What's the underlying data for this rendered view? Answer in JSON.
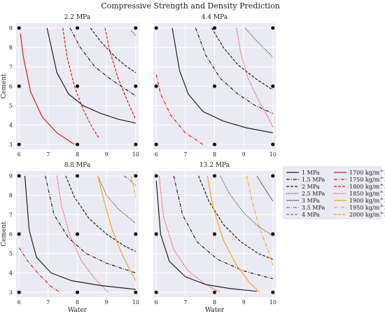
{
  "chart_data": {
    "type": "line",
    "title": "Compressive Strength and Density Prediction",
    "xlabel": "Water",
    "ylabel": "Cement",
    "xlim": [
      5.9,
      10.1
    ],
    "ylim": [
      2.75,
      9.25
    ],
    "xticks": [
      "6",
      "7",
      "8",
      "9",
      "10"
    ],
    "yticks": [
      "3",
      "4",
      "5",
      "6",
      "7",
      "8",
      "9"
    ],
    "grid": true,
    "legend_placement": "right",
    "legend": [
      {
        "label": "1 MPa",
        "color": "#222222",
        "dash": "solid"
      },
      {
        "label": "1.5 MPa",
        "color": "#222222",
        "dash": "dashdot"
      },
      {
        "label": "2 MPa",
        "color": "#222222",
        "dash": "dashed"
      },
      {
        "label": "2.5 MPa",
        "color": "#222222",
        "dash": "dotted"
      },
      {
        "label": "3 MPa",
        "color": "#7a7a7a",
        "dash": "solid"
      },
      {
        "label": "3.5 MPa",
        "color": "#7a7a7a",
        "dash": "dashdot"
      },
      {
        "label": "4 MPa",
        "color": "#7a7a7a",
        "dash": "dashed"
      },
      {
        "label": "1700 kg/m^3",
        "color": "#e41a1c",
        "dash": "solid"
      },
      {
        "label": "1750 kg/m^3",
        "color": "#e41a1c",
        "dash": "dashdot"
      },
      {
        "label": "1800 kg/m^3",
        "color": "#e41a1c",
        "dash": "dashed"
      },
      {
        "label": "1850 kg/m^3",
        "color": "#e41a1c",
        "dash": "dotted"
      },
      {
        "label": "1900 kg/m^3",
        "color": "#f5a623",
        "dash": "solid"
      },
      {
        "label": "1950 kg/m^3",
        "color": "#f5a623",
        "dash": "dashdot"
      },
      {
        "label": "2000 kg/m^3",
        "color": "#f5a623",
        "dash": "dashed"
      }
    ],
    "panels": [
      {
        "title": "2.2 MPa",
        "points": [
          [
            6,
            9
          ],
          [
            8,
            9
          ],
          [
            10,
            9
          ],
          [
            6,
            6
          ],
          [
            8,
            6
          ],
          [
            10,
            6
          ],
          [
            6,
            3
          ],
          [
            8,
            3
          ],
          [
            10,
            3
          ]
        ],
        "series": [
          {
            "legend": 0,
            "x": [
              6.96,
              7.3,
              7.7,
              8.2,
              8.8,
              9.4,
              10.0
            ],
            "y": [
              9,
              6.7,
              5.6,
              5.0,
              4.6,
              4.3,
              4.1
            ]
          },
          {
            "legend": 1,
            "x": [
              7.75,
              8.1,
              8.6,
              9.2,
              9.7,
              10.0
            ],
            "y": [
              9,
              8.0,
              7.0,
              6.3,
              5.8,
              5.5
            ]
          },
          {
            "legend": 2,
            "x": [
              8.45,
              8.8,
              9.3,
              9.7,
              10.0
            ],
            "y": [
              9,
              8.3,
              7.5,
              7.0,
              6.7
            ]
          },
          {
            "legend": 3,
            "x": [
              9.85,
              9.92,
              10.0
            ],
            "y": [
              8.85,
              8.75,
              8.6
            ]
          },
          {
            "legend": 7,
            "x": [
              6.05,
              6.15,
              6.4,
              6.8,
              7.3,
              7.9
            ],
            "y": [
              8.7,
              7.5,
              5.7,
              4.4,
              3.6,
              3.0
            ]
          },
          {
            "legend": 9,
            "x": [
              7.5,
              7.65,
              7.9,
              8.2,
              8.5,
              8.75
            ],
            "y": [
              9,
              7.5,
              6.0,
              4.8,
              3.9,
              3.3
            ]
          },
          {
            "legend": 9,
            "x": [
              8.95,
              9.1,
              9.4,
              9.7,
              10.0
            ],
            "y": [
              9,
              7.9,
              6.4,
              5.3,
              4.3
            ]
          }
        ]
      },
      {
        "title": "4.4 MPa",
        "points": [
          [
            6,
            9
          ],
          [
            8,
            9
          ],
          [
            10,
            9
          ],
          [
            6,
            6
          ],
          [
            8,
            6
          ],
          [
            10,
            6
          ],
          [
            6,
            3
          ],
          [
            8,
            3
          ],
          [
            10,
            3
          ]
        ],
        "series": [
          {
            "legend": 0,
            "x": [
              6.55,
              6.8,
              7.1,
              7.6,
              8.3,
              9.1,
              10.0
            ],
            "y": [
              9,
              6.8,
              5.6,
              4.7,
              4.2,
              3.85,
              3.6
            ]
          },
          {
            "legend": 1,
            "x": [
              7.35,
              7.7,
              8.2,
              8.8,
              9.4,
              10.0
            ],
            "y": [
              9,
              7.6,
              6.4,
              5.6,
              5.0,
              4.6
            ]
          },
          {
            "legend": 2,
            "x": [
              7.9,
              8.3,
              8.8,
              9.4,
              10.0
            ],
            "y": [
              9,
              8.0,
              7.1,
              6.4,
              5.8
            ]
          },
          {
            "legend": 3,
            "x": [
              9.05,
              9.4,
              9.8,
              10.0
            ],
            "y": [
              9,
              8.4,
              7.8,
              7.5
            ]
          },
          {
            "legend": 8,
            "x": [
              6.0,
              6.15,
              6.5,
              7.0,
              7.6
            ],
            "y": [
              6.6,
              5.6,
              4.5,
              3.6,
              3.0
            ]
          },
          {
            "legend": 10,
            "x": [
              8.75,
              8.9,
              9.15,
              9.5,
              9.8,
              10.0
            ],
            "y": [
              9,
              7.7,
              6.4,
              5.3,
              4.5,
              3.9
            ]
          }
        ]
      },
      {
        "title": "8.8 MPa",
        "points": [
          [
            6,
            9
          ],
          [
            8,
            9
          ],
          [
            10,
            9
          ],
          [
            6,
            6
          ],
          [
            8,
            6
          ],
          [
            10,
            6
          ],
          [
            6,
            3
          ],
          [
            8,
            3
          ],
          [
            10,
            3
          ]
        ],
        "series": [
          {
            "legend": 0,
            "x": [
              6.2,
              6.35,
              6.6,
              7.1,
              7.8,
              8.8,
              10.0
            ],
            "y": [
              9,
              6.2,
              4.8,
              4.0,
              3.6,
              3.35,
              3.15
            ]
          },
          {
            "legend": 1,
            "x": [
              6.9,
              7.2,
              7.7,
              8.3,
              9.0,
              10.0
            ],
            "y": [
              9,
              7.0,
              5.8,
              5.0,
              4.5,
              4.0
            ]
          },
          {
            "legend": 2,
            "x": [
              7.6,
              7.9,
              8.4,
              9.0,
              9.6,
              10.0
            ],
            "y": [
              9,
              7.9,
              6.8,
              6.0,
              5.4,
              5.1
            ]
          },
          {
            "legend": 3,
            "x": [
              8.7,
              9.0,
              9.4,
              9.8,
              10.0
            ],
            "y": [
              9,
              8.0,
              7.3,
              6.8,
              6.55
            ]
          },
          {
            "legend": 5,
            "x": [
              9.6,
              9.8,
              10.0
            ],
            "y": [
              9,
              8.8,
              8.5
            ]
          },
          {
            "legend": 8,
            "x": [
              6.0,
              6.3,
              6.7,
              7.1,
              7.4
            ],
            "y": [
              5.3,
              4.6,
              3.9,
              3.3,
              3.0
            ]
          },
          {
            "legend": 10,
            "x": [
              7.3,
              7.45,
              7.75,
              8.15,
              8.6,
              9.05
            ],
            "y": [
              9,
              7.5,
              5.9,
              4.6,
              3.7,
              3.0
            ]
          },
          {
            "legend": 11,
            "x": [
              8.7,
              8.9,
              9.2,
              9.55,
              10.0
            ],
            "y": [
              9,
              7.8,
              6.2,
              4.9,
              3.6
            ]
          },
          {
            "legend": 12,
            "x": [
              9.85,
              9.92,
              10.0
            ],
            "y": [
              9,
              8.5,
              7.9
            ]
          }
        ]
      },
      {
        "title": "13.2 MPa",
        "points": [
          [
            6,
            9
          ],
          [
            8,
            9
          ],
          [
            10,
            9
          ],
          [
            6,
            6
          ],
          [
            8,
            6
          ],
          [
            10,
            6
          ],
          [
            6,
            3
          ],
          [
            8,
            3
          ],
          [
            10,
            3
          ]
        ],
        "series": [
          {
            "legend": 0,
            "x": [
              6.0,
              6.15,
              6.45,
              7.0,
              7.7,
              8.5,
              9.45
            ],
            "y": [
              8.75,
              6.0,
              4.6,
              3.8,
              3.4,
              3.2,
              3.05
            ]
          },
          {
            "legend": 1,
            "x": [
              6.6,
              6.9,
              7.4,
              8.1,
              9.0,
              10.0
            ],
            "y": [
              9,
              7.0,
              5.6,
              4.7,
              4.1,
              3.7
            ]
          },
          {
            "legend": 2,
            "x": [
              7.45,
              7.8,
              8.3,
              8.9,
              9.5,
              10.0
            ],
            "y": [
              9,
              7.7,
              6.5,
              5.6,
              5.0,
              4.7
            ]
          },
          {
            "legend": 3,
            "x": [
              8.2,
              8.5,
              9.0,
              9.5,
              10.0
            ],
            "y": [
              9,
              8.1,
              7.1,
              6.4,
              5.9
            ]
          },
          {
            "legend": 4,
            "x": [
              9.45,
              9.7,
              10.0
            ],
            "y": [
              9,
              8.4,
              7.7
            ]
          },
          {
            "legend": 10,
            "x": [
              6.1,
              6.25,
              6.6,
              7.1,
              7.7,
              8.2
            ],
            "y": [
              9,
              6.9,
              5.2,
              4.1,
              3.4,
              3.0
            ]
          },
          {
            "legend": 11,
            "x": [
              7.75,
              7.95,
              8.3,
              8.75,
              9.2,
              9.55
            ],
            "y": [
              9,
              7.4,
              5.7,
              4.4,
              3.5,
              3.0
            ]
          },
          {
            "legend": 12,
            "x": [
              9.1,
              9.3,
              9.55,
              9.8,
              10.0
            ],
            "y": [
              9,
              7.6,
              6.3,
              5.3,
              4.4
            ]
          }
        ]
      }
    ]
  }
}
